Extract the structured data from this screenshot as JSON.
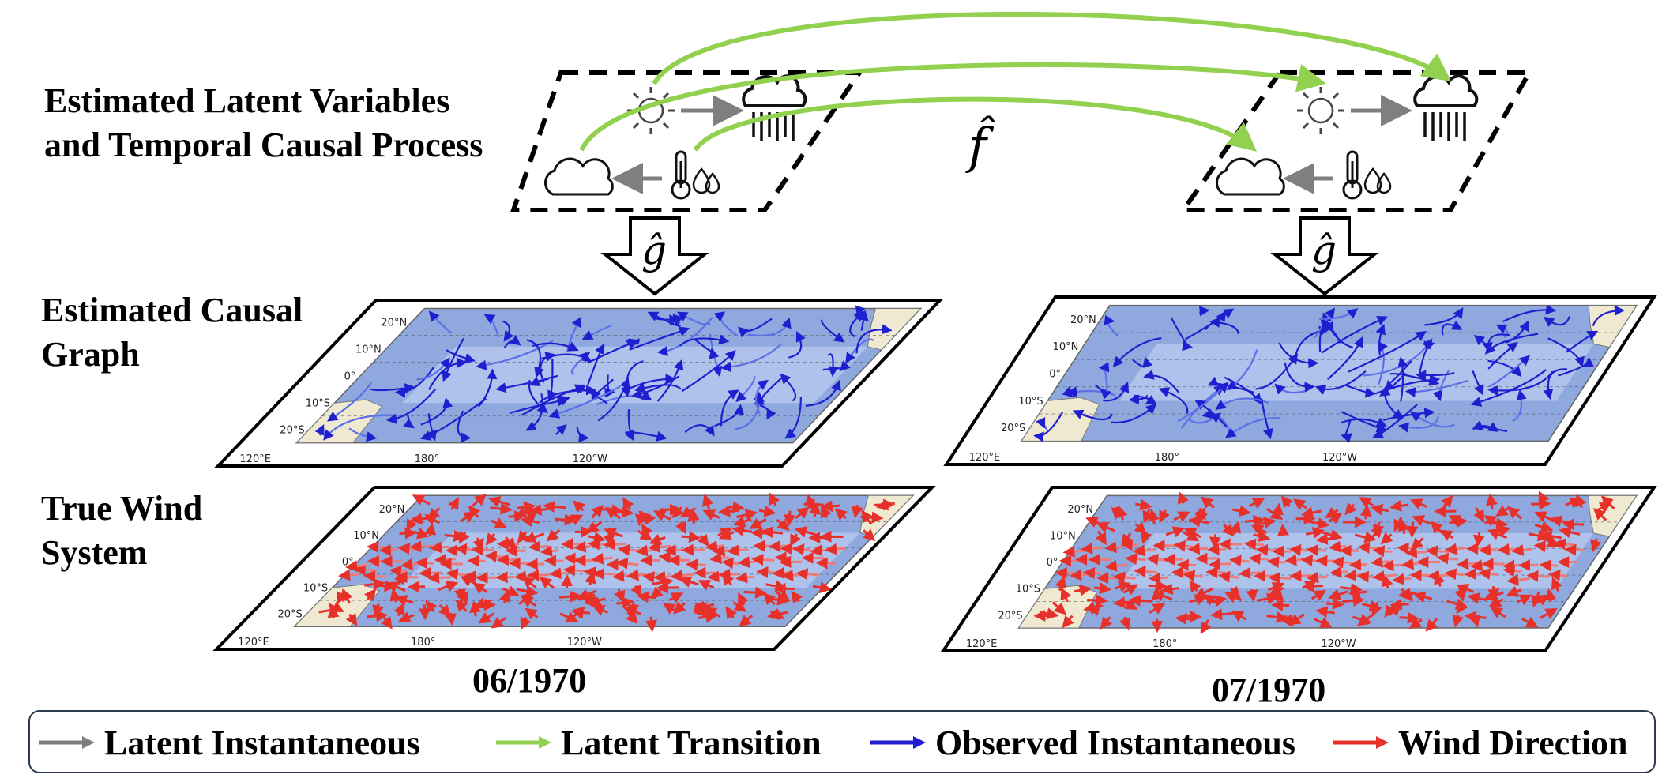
{
  "labels": {
    "row1_line1": "Estimated Latent Variables",
    "row1_line2": "and Temporal Causal Process",
    "row2_line1": "Estimated Causal",
    "row2_line2": "Graph",
    "row3_line1": "True Wind",
    "row3_line2": "System"
  },
  "symbols": {
    "f_hat": "f̂",
    "g_hat": "ĝ"
  },
  "dates": [
    "06/1970",
    "07/1970"
  ],
  "map_ticks": {
    "lat": [
      "20°N",
      "10°N",
      "0°",
      "10°S",
      "20°S"
    ],
    "lon": [
      "120°E",
      "180°",
      "120°W"
    ]
  },
  "legend": [
    {
      "label": "Latent Instantaneous",
      "color": "#7f7f7f"
    },
    {
      "label": "Latent Transition",
      "color": "#92d050"
    },
    {
      "label": "Observed Instantaneous",
      "color": "#1f1fd0"
    },
    {
      "label": "Wind Direction",
      "color": "#e8302a"
    }
  ],
  "icons": [
    "sun-icon",
    "rain-cloud-icon",
    "cloud-icon",
    "thermometer-humidity-icon"
  ]
}
